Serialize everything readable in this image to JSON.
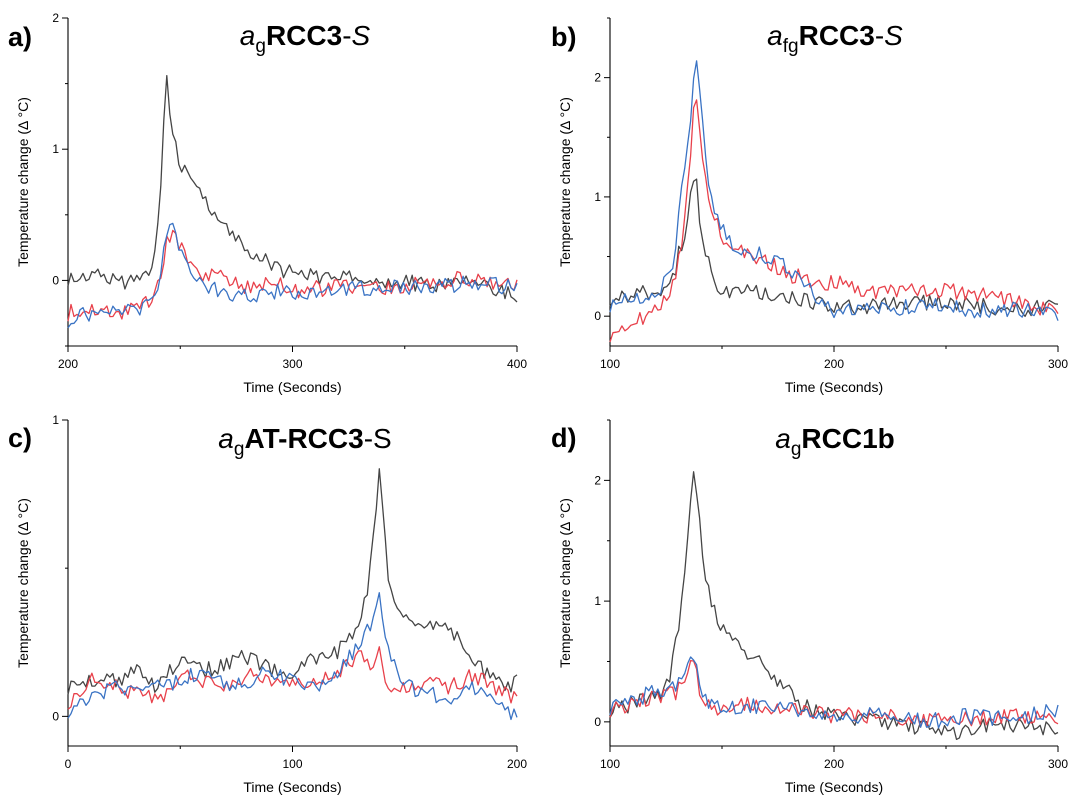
{
  "colors": {
    "black": "#454545",
    "red": "#e8414b",
    "blue": "#3a73c4"
  },
  "chart_data": [
    {
      "type": "line",
      "panel_label": "a)",
      "title": {
        "italic": "a",
        "subscript": "g",
        "bold": "RCC3",
        "suffix": "-",
        "suffix_italic": "S"
      },
      "xlabel": "Time (Seconds)",
      "ylabel": "Temperature change (Δ °C)",
      "xlim": [
        200,
        400
      ],
      "ylim": [
        -0.5,
        2
      ],
      "xticks": [
        200,
        300,
        400
      ],
      "yticks": [
        0,
        1,
        2
      ],
      "grid": false,
      "series": [
        {
          "color": "black",
          "x": [
            200,
            210,
            220,
            230,
            238,
            241,
            243,
            244,
            245,
            247,
            250,
            255,
            260,
            265,
            270,
            275,
            280,
            290,
            300,
            320,
            340,
            360,
            380,
            400
          ],
          "y": [
            0.02,
            0.05,
            0.0,
            -0.02,
            0.05,
            0.6,
            1.3,
            1.55,
            1.3,
            1.05,
            0.9,
            0.75,
            0.62,
            0.52,
            0.43,
            0.35,
            0.25,
            0.13,
            0.05,
            0.02,
            0.0,
            -0.03,
            -0.02,
            -0.12
          ]
        },
        {
          "color": "red",
          "x": [
            200,
            210,
            220,
            230,
            238,
            241,
            244,
            246,
            250,
            255,
            260,
            270,
            280,
            290,
            300,
            320,
            340,
            360,
            380,
            400
          ],
          "y": [
            -0.25,
            -0.2,
            -0.25,
            -0.22,
            -0.15,
            0.0,
            0.3,
            0.38,
            0.25,
            0.15,
            0.05,
            0.02,
            -0.05,
            0.0,
            -0.08,
            -0.05,
            -0.07,
            -0.02,
            0.02,
            -0.05
          ]
        },
        {
          "color": "blue",
          "x": [
            200,
            210,
            220,
            230,
            238,
            241,
            244,
            246,
            250,
            255,
            260,
            270,
            280,
            290,
            300,
            320,
            340,
            360,
            380,
            400
          ],
          "y": [
            -0.3,
            -0.25,
            -0.22,
            -0.25,
            -0.18,
            0.05,
            0.4,
            0.45,
            0.22,
            0.1,
            -0.02,
            -0.1,
            -0.13,
            -0.08,
            -0.1,
            -0.08,
            -0.05,
            -0.05,
            -0.02,
            -0.05
          ]
        }
      ]
    },
    {
      "type": "line",
      "panel_label": "b)",
      "title": {
        "italic": "a",
        "subscript": "fg",
        "bold": "RCC3",
        "suffix": "-",
        "suffix_italic": "S"
      },
      "xlabel": "Time (Seconds)",
      "ylabel": "Temperature change (Δ °C)",
      "xlim": [
        100,
        300
      ],
      "ylim": [
        -0.25,
        2.5
      ],
      "xticks": [
        100,
        200,
        300
      ],
      "yticks": [
        0,
        1,
        2
      ],
      "grid": false,
      "series": [
        {
          "color": "black",
          "x": [
            100,
            110,
            120,
            128,
            131,
            134,
            136,
            138,
            140,
            142,
            145,
            150,
            160,
            170,
            180,
            190,
            200,
            220,
            240,
            260,
            280,
            300
          ],
          "y": [
            0.15,
            0.18,
            0.2,
            0.3,
            0.55,
            0.65,
            1.05,
            1.2,
            0.85,
            0.6,
            0.35,
            0.22,
            0.2,
            0.2,
            0.15,
            0.12,
            0.05,
            0.1,
            0.12,
            0.1,
            0.05,
            0.1
          ]
        },
        {
          "color": "red",
          "x": [
            100,
            110,
            120,
            128,
            131,
            134,
            136,
            138,
            140,
            143,
            147,
            152,
            160,
            170,
            180,
            190,
            200,
            220,
            240,
            260,
            280,
            300
          ],
          "y": [
            -0.15,
            -0.05,
            0.05,
            0.25,
            0.5,
            0.9,
            1.4,
            1.85,
            1.6,
            1.1,
            0.8,
            0.6,
            0.55,
            0.45,
            0.35,
            0.3,
            0.28,
            0.2,
            0.22,
            0.2,
            0.12,
            0.05
          ]
        },
        {
          "color": "blue",
          "x": [
            100,
            110,
            120,
            128,
            131,
            134,
            136,
            138,
            140,
            143,
            147,
            152,
            160,
            170,
            180,
            190,
            200,
            220,
            240,
            260,
            280,
            300
          ],
          "y": [
            0.1,
            0.15,
            0.2,
            0.35,
            0.9,
            1.3,
            1.6,
            2.22,
            1.9,
            1.2,
            0.85,
            0.65,
            0.55,
            0.5,
            0.4,
            0.2,
            0.05,
            0.05,
            0.1,
            0.05,
            0.05,
            0.02
          ]
        }
      ]
    },
    {
      "type": "line",
      "panel_label": "c)",
      "title": {
        "italic": "a",
        "subscript": "g",
        "bold": "AT-RCC3",
        "suffix": "-S",
        "suffix_italic": ""
      },
      "xlabel": "Time (Seconds)",
      "ylabel": "Temperature change (Δ °C)",
      "xlim": [
        0,
        200
      ],
      "ylim": [
        -0.1,
        1
      ],
      "xticks": [
        0,
        100,
        200
      ],
      "yticks": [
        0,
        1
      ],
      "grid": false,
      "series": [
        {
          "color": "black",
          "x": [
            0,
            10,
            20,
            30,
            40,
            50,
            60,
            70,
            80,
            90,
            100,
            110,
            120,
            125,
            130,
            134,
            137,
            139,
            141,
            143,
            146,
            150,
            155,
            160,
            165,
            170,
            175,
            180,
            185,
            190,
            195,
            200
          ],
          "y": [
            0.1,
            0.13,
            0.12,
            0.15,
            0.1,
            0.2,
            0.15,
            0.18,
            0.2,
            0.16,
            0.15,
            0.2,
            0.22,
            0.25,
            0.3,
            0.45,
            0.7,
            0.85,
            0.6,
            0.45,
            0.38,
            0.35,
            0.32,
            0.3,
            0.32,
            0.28,
            0.25,
            0.2,
            0.15,
            0.12,
            0.1,
            0.12
          ]
        },
        {
          "color": "red",
          "x": [
            0,
            10,
            20,
            30,
            40,
            50,
            60,
            70,
            80,
            90,
            100,
            110,
            120,
            130,
            135,
            139,
            143,
            150,
            160,
            170,
            180,
            190,
            200
          ],
          "y": [
            0.05,
            0.12,
            0.1,
            0.08,
            0.05,
            0.15,
            0.12,
            0.1,
            0.14,
            0.12,
            0.1,
            0.12,
            0.15,
            0.2,
            0.18,
            0.22,
            0.08,
            0.1,
            0.12,
            0.1,
            0.14,
            0.1,
            0.06
          ]
        },
        {
          "color": "blue",
          "x": [
            0,
            10,
            20,
            30,
            40,
            50,
            60,
            70,
            80,
            90,
            100,
            110,
            120,
            130,
            135,
            139,
            143,
            150,
            160,
            170,
            180,
            190,
            200
          ],
          "y": [
            0.02,
            0.05,
            0.1,
            0.08,
            0.1,
            0.12,
            0.15,
            0.1,
            0.12,
            0.15,
            0.12,
            0.1,
            0.15,
            0.25,
            0.3,
            0.4,
            0.2,
            0.1,
            0.08,
            0.05,
            0.1,
            0.05,
            0.0
          ]
        }
      ]
    },
    {
      "type": "line",
      "panel_label": "d)",
      "title": {
        "italic": "a",
        "subscript": "g",
        "bold": "RCC1b",
        "suffix": "",
        "suffix_italic": ""
      },
      "xlabel": "Time (Seconds)",
      "ylabel": "Temperature change (Δ °C)",
      "xlim": [
        100,
        300
      ],
      "ylim": [
        -0.2,
        2.5
      ],
      "xticks": [
        100,
        200,
        300
      ],
      "yticks": [
        0,
        1,
        2
      ],
      "grid": false,
      "series": [
        {
          "color": "black",
          "x": [
            100,
            110,
            120,
            126,
            129,
            132,
            135,
            137,
            139,
            141,
            144,
            148,
            152,
            156,
            160,
            165,
            170,
            175,
            180,
            185,
            190,
            200,
            220,
            240,
            255,
            260,
            280,
            300
          ],
          "y": [
            0.1,
            0.15,
            0.2,
            0.3,
            0.6,
            1.0,
            1.6,
            2.15,
            1.9,
            1.4,
            1.1,
            0.85,
            0.72,
            0.65,
            0.58,
            0.52,
            0.45,
            0.35,
            0.25,
            0.15,
            0.1,
            0.05,
            0.0,
            -0.05,
            -0.12,
            -0.05,
            -0.02,
            -0.05
          ]
        },
        {
          "color": "red",
          "x": [
            100,
            110,
            120,
            130,
            134,
            137,
            139,
            142,
            146,
            150,
            160,
            170,
            180,
            200,
            220,
            240,
            260,
            280,
            300
          ],
          "y": [
            0.1,
            0.15,
            0.2,
            0.25,
            0.38,
            0.5,
            0.35,
            0.15,
            0.1,
            0.12,
            0.15,
            0.12,
            0.1,
            0.05,
            0.05,
            0.02,
            0.03,
            0.05,
            0.05
          ]
        },
        {
          "color": "blue",
          "x": [
            100,
            110,
            120,
            130,
            134,
            137,
            139,
            142,
            146,
            150,
            160,
            170,
            180,
            200,
            220,
            240,
            260,
            280,
            300
          ],
          "y": [
            0.12,
            0.18,
            0.25,
            0.3,
            0.45,
            0.58,
            0.4,
            0.2,
            0.12,
            0.1,
            0.12,
            0.15,
            0.1,
            0.05,
            0.05,
            0.0,
            0.05,
            0.02,
            0.1
          ]
        }
      ]
    }
  ]
}
